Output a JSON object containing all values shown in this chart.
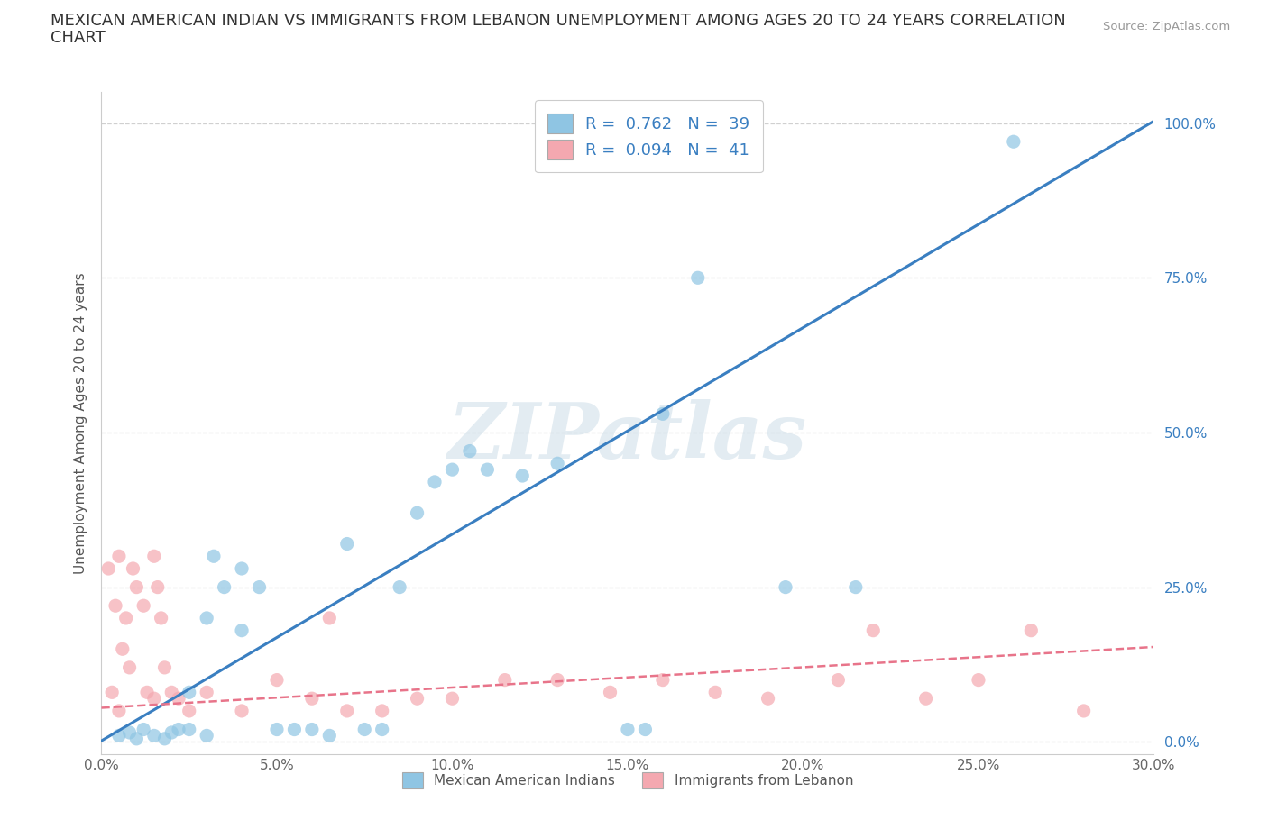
{
  "title_line1": "MEXICAN AMERICAN INDIAN VS IMMIGRANTS FROM LEBANON UNEMPLOYMENT AMONG AGES 20 TO 24 YEARS CORRELATION",
  "title_line2": "CHART",
  "source": "Source: ZipAtlas.com",
  "ylabel": "Unemployment Among Ages 20 to 24 years",
  "xlim": [
    0,
    0.3
  ],
  "ylim": [
    -0.02,
    1.05
  ],
  "yticks": [
    0.0,
    0.25,
    0.5,
    0.75,
    1.0
  ],
  "ytick_labels": [
    "0.0%",
    "25.0%",
    "50.0%",
    "75.0%",
    "100.0%"
  ],
  "xticks": [
    0.0,
    0.05,
    0.1,
    0.15,
    0.2,
    0.25,
    0.3
  ],
  "xtick_labels": [
    "0.0%",
    "5.0%",
    "10.0%",
    "15.0%",
    "20.0%",
    "25.0%",
    "30.0%"
  ],
  "watermark": "ZIPatlas",
  "legend_R_blue": "0.762",
  "legend_N_blue": "39",
  "legend_R_pink": "0.094",
  "legend_N_pink": "41",
  "blue_color": "#8fc5e3",
  "pink_color": "#f4a8b0",
  "trend_blue": "#3a7fc1",
  "trend_pink": "#e8748a",
  "blue_scatter_x": [
    0.005,
    0.008,
    0.01,
    0.012,
    0.015,
    0.018,
    0.02,
    0.022,
    0.025,
    0.025,
    0.03,
    0.03,
    0.032,
    0.035,
    0.04,
    0.04,
    0.045,
    0.05,
    0.055,
    0.06,
    0.065,
    0.07,
    0.075,
    0.08,
    0.085,
    0.09,
    0.095,
    0.1,
    0.105,
    0.11,
    0.12,
    0.13,
    0.15,
    0.155,
    0.16,
    0.17,
    0.195,
    0.215,
    0.26
  ],
  "blue_scatter_y": [
    0.01,
    0.015,
    0.005,
    0.02,
    0.01,
    0.005,
    0.015,
    0.02,
    0.02,
    0.08,
    0.01,
    0.2,
    0.3,
    0.25,
    0.18,
    0.28,
    0.25,
    0.02,
    0.02,
    0.02,
    0.01,
    0.32,
    0.02,
    0.02,
    0.25,
    0.37,
    0.42,
    0.44,
    0.47,
    0.44,
    0.43,
    0.45,
    0.02,
    0.02,
    0.53,
    0.75,
    0.25,
    0.25,
    0.97
  ],
  "pink_scatter_x": [
    0.002,
    0.003,
    0.004,
    0.005,
    0.005,
    0.006,
    0.007,
    0.008,
    0.009,
    0.01,
    0.012,
    0.013,
    0.015,
    0.015,
    0.016,
    0.017,
    0.018,
    0.02,
    0.022,
    0.025,
    0.03,
    0.04,
    0.05,
    0.06,
    0.065,
    0.07,
    0.08,
    0.09,
    0.1,
    0.115,
    0.13,
    0.145,
    0.16,
    0.175,
    0.19,
    0.21,
    0.22,
    0.235,
    0.25,
    0.265,
    0.28
  ],
  "pink_scatter_y": [
    0.28,
    0.08,
    0.22,
    0.3,
    0.05,
    0.15,
    0.2,
    0.12,
    0.28,
    0.25,
    0.22,
    0.08,
    0.3,
    0.07,
    0.25,
    0.2,
    0.12,
    0.08,
    0.07,
    0.05,
    0.08,
    0.05,
    0.1,
    0.07,
    0.2,
    0.05,
    0.05,
    0.07,
    0.07,
    0.1,
    0.1,
    0.08,
    0.1,
    0.08,
    0.07,
    0.1,
    0.18,
    0.07,
    0.1,
    0.18,
    0.05
  ],
  "blue_trend_x": [
    -0.005,
    0.305
  ],
  "blue_trend_y": [
    -0.015,
    1.02
  ],
  "pink_trend_x": [
    0.0,
    0.305
  ],
  "pink_trend_y": [
    0.055,
    0.155
  ],
  "background_color": "#ffffff",
  "grid_color": "#d0d0d0",
  "title_fontsize": 13,
  "axis_label_fontsize": 11,
  "tick_fontsize": 11,
  "legend_fontsize": 13,
  "bottom_legend_label_blue": "Mexican American Indians",
  "bottom_legend_label_pink": "Immigrants from Lebanon"
}
